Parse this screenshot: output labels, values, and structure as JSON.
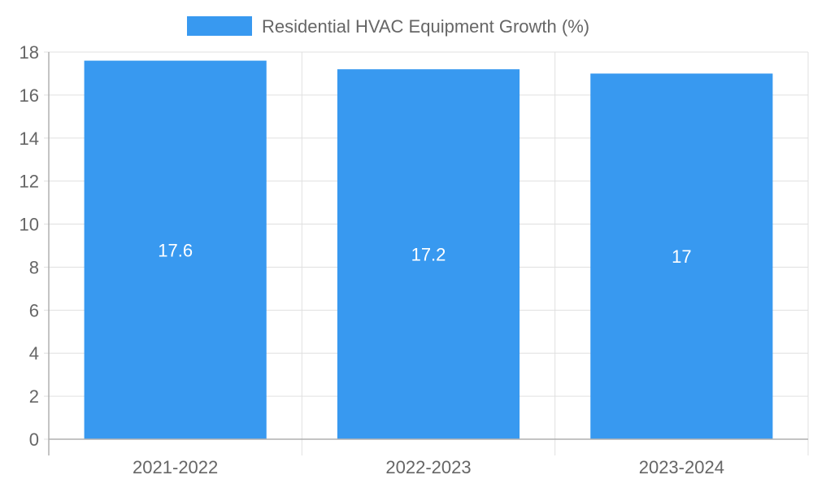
{
  "chart_data": {
    "type": "bar",
    "categories": [
      "2021-2022",
      "2022-2023",
      "2023-2024"
    ],
    "series": [
      {
        "name": "Residential HVAC Equipment Growth (%)",
        "values": [
          17.6,
          17.2,
          17
        ],
        "data_labels": [
          "17.6",
          "17.2",
          "17"
        ],
        "color": "#3899f0"
      }
    ],
    "ylim": [
      0,
      18
    ],
    "y_ticks": [
      0,
      2,
      4,
      6,
      8,
      10,
      12,
      14,
      16,
      18
    ],
    "grid": true,
    "legend_position": "top-center",
    "title": "",
    "xlabel": "",
    "ylabel": ""
  }
}
